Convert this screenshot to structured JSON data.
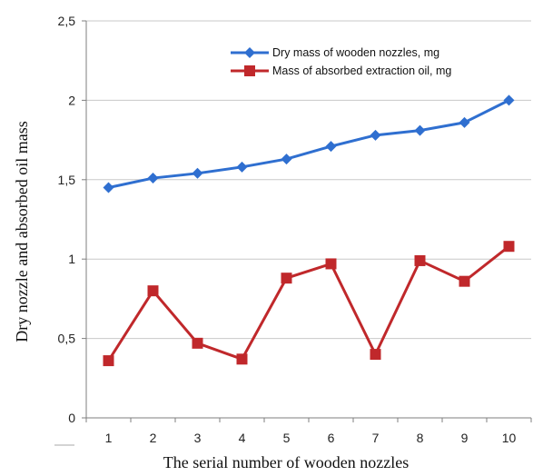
{
  "chart_data": {
    "type": "line",
    "xlabel": "The serial number of wooden nozzles",
    "ylabel": "Dry nozzle and absorbed oil mass",
    "x": [
      1,
      2,
      3,
      4,
      5,
      6,
      7,
      8,
      9,
      10
    ],
    "ylim": [
      0,
      2.5
    ],
    "yticks": [
      "0",
      "0,5",
      "1",
      "1,5",
      "2",
      "2,5"
    ],
    "grid": true,
    "legend_position": "top-right",
    "series": [
      {
        "name": "Dry mass of wooden nozzles, mg",
        "color": "#2f6fd0",
        "marker": "diamond",
        "values": [
          1.45,
          1.51,
          1.54,
          1.58,
          1.63,
          1.71,
          1.78,
          1.81,
          1.86,
          2.0
        ]
      },
      {
        "name": "Mass of absorbed extraction oil, mg",
        "color": "#c0282b",
        "marker": "square",
        "values": [
          0.36,
          0.8,
          0.47,
          0.37,
          0.88,
          0.97,
          0.4,
          0.99,
          0.86,
          1.08
        ]
      }
    ]
  }
}
